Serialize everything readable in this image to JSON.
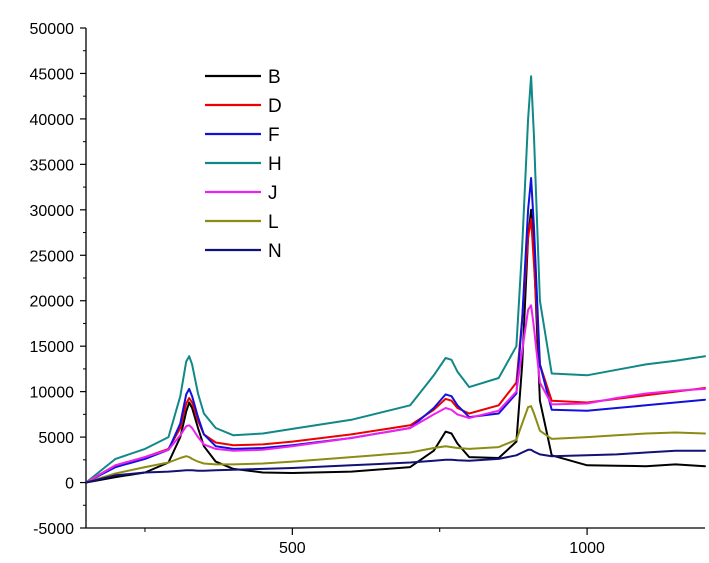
{
  "chart_data": {
    "type": "line",
    "title": "",
    "xlabel": "",
    "ylabel": "",
    "xlim": [
      150,
      1200
    ],
    "ylim": [
      -5000,
      50000
    ],
    "xticks": [
      500,
      1000
    ],
    "yticks": [
      -5000,
      0,
      5000,
      10000,
      15000,
      20000,
      25000,
      30000,
      35000,
      40000,
      45000,
      50000
    ],
    "grid": false,
    "legend_position": "top-left",
    "series": [
      {
        "name": "B",
        "color": "#000000",
        "x": [
          150,
          200,
          250,
          290,
          310,
          320,
          325,
          330,
          340,
          350,
          370,
          400,
          450,
          500,
          600,
          700,
          740,
          760,
          770,
          780,
          800,
          850,
          880,
          890,
          900,
          905,
          910,
          920,
          940,
          1000,
          1050,
          1100,
          1150,
          1200
        ],
        "y": [
          0,
          600,
          1100,
          2200,
          5000,
          7800,
          8800,
          8200,
          6000,
          4000,
          2300,
          1500,
          1100,
          1050,
          1200,
          1700,
          3500,
          5600,
          5400,
          4300,
          2800,
          2700,
          4500,
          13000,
          27000,
          30000,
          25000,
          9000,
          3000,
          1900,
          1850,
          1800,
          2000,
          1800
        ]
      },
      {
        "name": "D",
        "color": "#ee0000",
        "x": [
          150,
          200,
          250,
          290,
          310,
          320,
          325,
          330,
          340,
          350,
          370,
          400,
          450,
          500,
          600,
          700,
          740,
          760,
          770,
          780,
          800,
          850,
          880,
          890,
          900,
          905,
          910,
          920,
          940,
          1000,
          1050,
          1100,
          1150,
          1200
        ],
        "y": [
          0,
          1900,
          2800,
          3700,
          6000,
          8700,
          9300,
          8800,
          6800,
          5300,
          4400,
          4100,
          4200,
          4500,
          5300,
          6300,
          8000,
          9200,
          9000,
          8200,
          7600,
          8500,
          11000,
          18000,
          27000,
          29000,
          24000,
          13000,
          9000,
          8800,
          9200,
          9600,
          10000,
          10400
        ]
      },
      {
        "name": "F",
        "color": "#1111dd",
        "x": [
          150,
          200,
          250,
          290,
          310,
          320,
          325,
          330,
          340,
          350,
          370,
          400,
          450,
          500,
          600,
          700,
          740,
          760,
          770,
          780,
          800,
          850,
          880,
          890,
          900,
          905,
          910,
          920,
          940,
          1000,
          1050,
          1100,
          1150,
          1200
        ],
        "y": [
          0,
          1700,
          2600,
          3600,
          6500,
          9700,
          10300,
          9500,
          7200,
          5300,
          4000,
          3700,
          3800,
          4100,
          4900,
          6000,
          8200,
          9700,
          9500,
          8500,
          7200,
          7600,
          9800,
          18000,
          30000,
          33500,
          28000,
          13000,
          8000,
          7900,
          8200,
          8500,
          8800,
          9100
        ]
      },
      {
        "name": "H",
        "color": "#118888",
        "x": [
          150,
          200,
          250,
          290,
          310,
          320,
          325,
          330,
          340,
          350,
          370,
          400,
          450,
          500,
          600,
          700,
          740,
          760,
          770,
          780,
          800,
          850,
          880,
          890,
          900,
          905,
          910,
          920,
          940,
          1000,
          1050,
          1100,
          1150,
          1200
        ],
        "y": [
          0,
          2600,
          3700,
          5000,
          9500,
          13300,
          13900,
          13000,
          9800,
          7600,
          6000,
          5200,
          5400,
          5900,
          6900,
          8500,
          11800,
          13700,
          13500,
          12200,
          10500,
          11500,
          15000,
          26000,
          40000,
          44700,
          38000,
          20000,
          12000,
          11800,
          12400,
          13000,
          13400,
          13900
        ]
      },
      {
        "name": "J",
        "color": "#ee22ee",
        "x": [
          150,
          200,
          250,
          290,
          310,
          320,
          325,
          330,
          340,
          350,
          370,
          400,
          450,
          500,
          600,
          700,
          740,
          760,
          770,
          780,
          800,
          850,
          880,
          890,
          900,
          905,
          910,
          920,
          940,
          1000,
          1050,
          1100,
          1150,
          1200
        ],
        "y": [
          0,
          1900,
          2800,
          3600,
          5200,
          6200,
          6300,
          6000,
          5000,
          4200,
          3700,
          3500,
          3600,
          4000,
          4900,
          6000,
          7500,
          8200,
          8000,
          7500,
          7100,
          7900,
          10000,
          14500,
          19000,
          19500,
          17000,
          11000,
          8600,
          8700,
          9300,
          9800,
          10100,
          10300
        ]
      },
      {
        "name": "L",
        "color": "#8c8c14",
        "x": [
          150,
          200,
          250,
          290,
          310,
          320,
          325,
          330,
          340,
          350,
          370,
          400,
          450,
          500,
          600,
          700,
          740,
          760,
          770,
          780,
          800,
          850,
          880,
          890,
          900,
          905,
          910,
          920,
          940,
          1000,
          1050,
          1100,
          1150,
          1200
        ],
        "y": [
          0,
          1000,
          1700,
          2200,
          2700,
          2900,
          2800,
          2600,
          2300,
          2100,
          2000,
          2000,
          2100,
          2300,
          2800,
          3300,
          3800,
          4000,
          3900,
          3800,
          3700,
          3900,
          4700,
          6500,
          8300,
          8400,
          7600,
          5700,
          4800,
          5000,
          5200,
          5400,
          5500,
          5400
        ]
      },
      {
        "name": "N",
        "color": "#111177",
        "x": [
          150,
          200,
          250,
          290,
          310,
          320,
          325,
          330,
          340,
          350,
          370,
          400,
          450,
          500,
          600,
          700,
          740,
          760,
          770,
          780,
          800,
          850,
          880,
          890,
          900,
          905,
          910,
          920,
          940,
          1000,
          1050,
          1100,
          1150,
          1200
        ],
        "y": [
          0,
          800,
          1100,
          1200,
          1300,
          1350,
          1350,
          1350,
          1300,
          1300,
          1350,
          1400,
          1500,
          1600,
          1900,
          2200,
          2400,
          2500,
          2500,
          2450,
          2400,
          2600,
          3000,
          3300,
          3600,
          3600,
          3400,
          3100,
          2900,
          3000,
          3100,
          3300,
          3500,
          3500
        ]
      }
    ]
  }
}
